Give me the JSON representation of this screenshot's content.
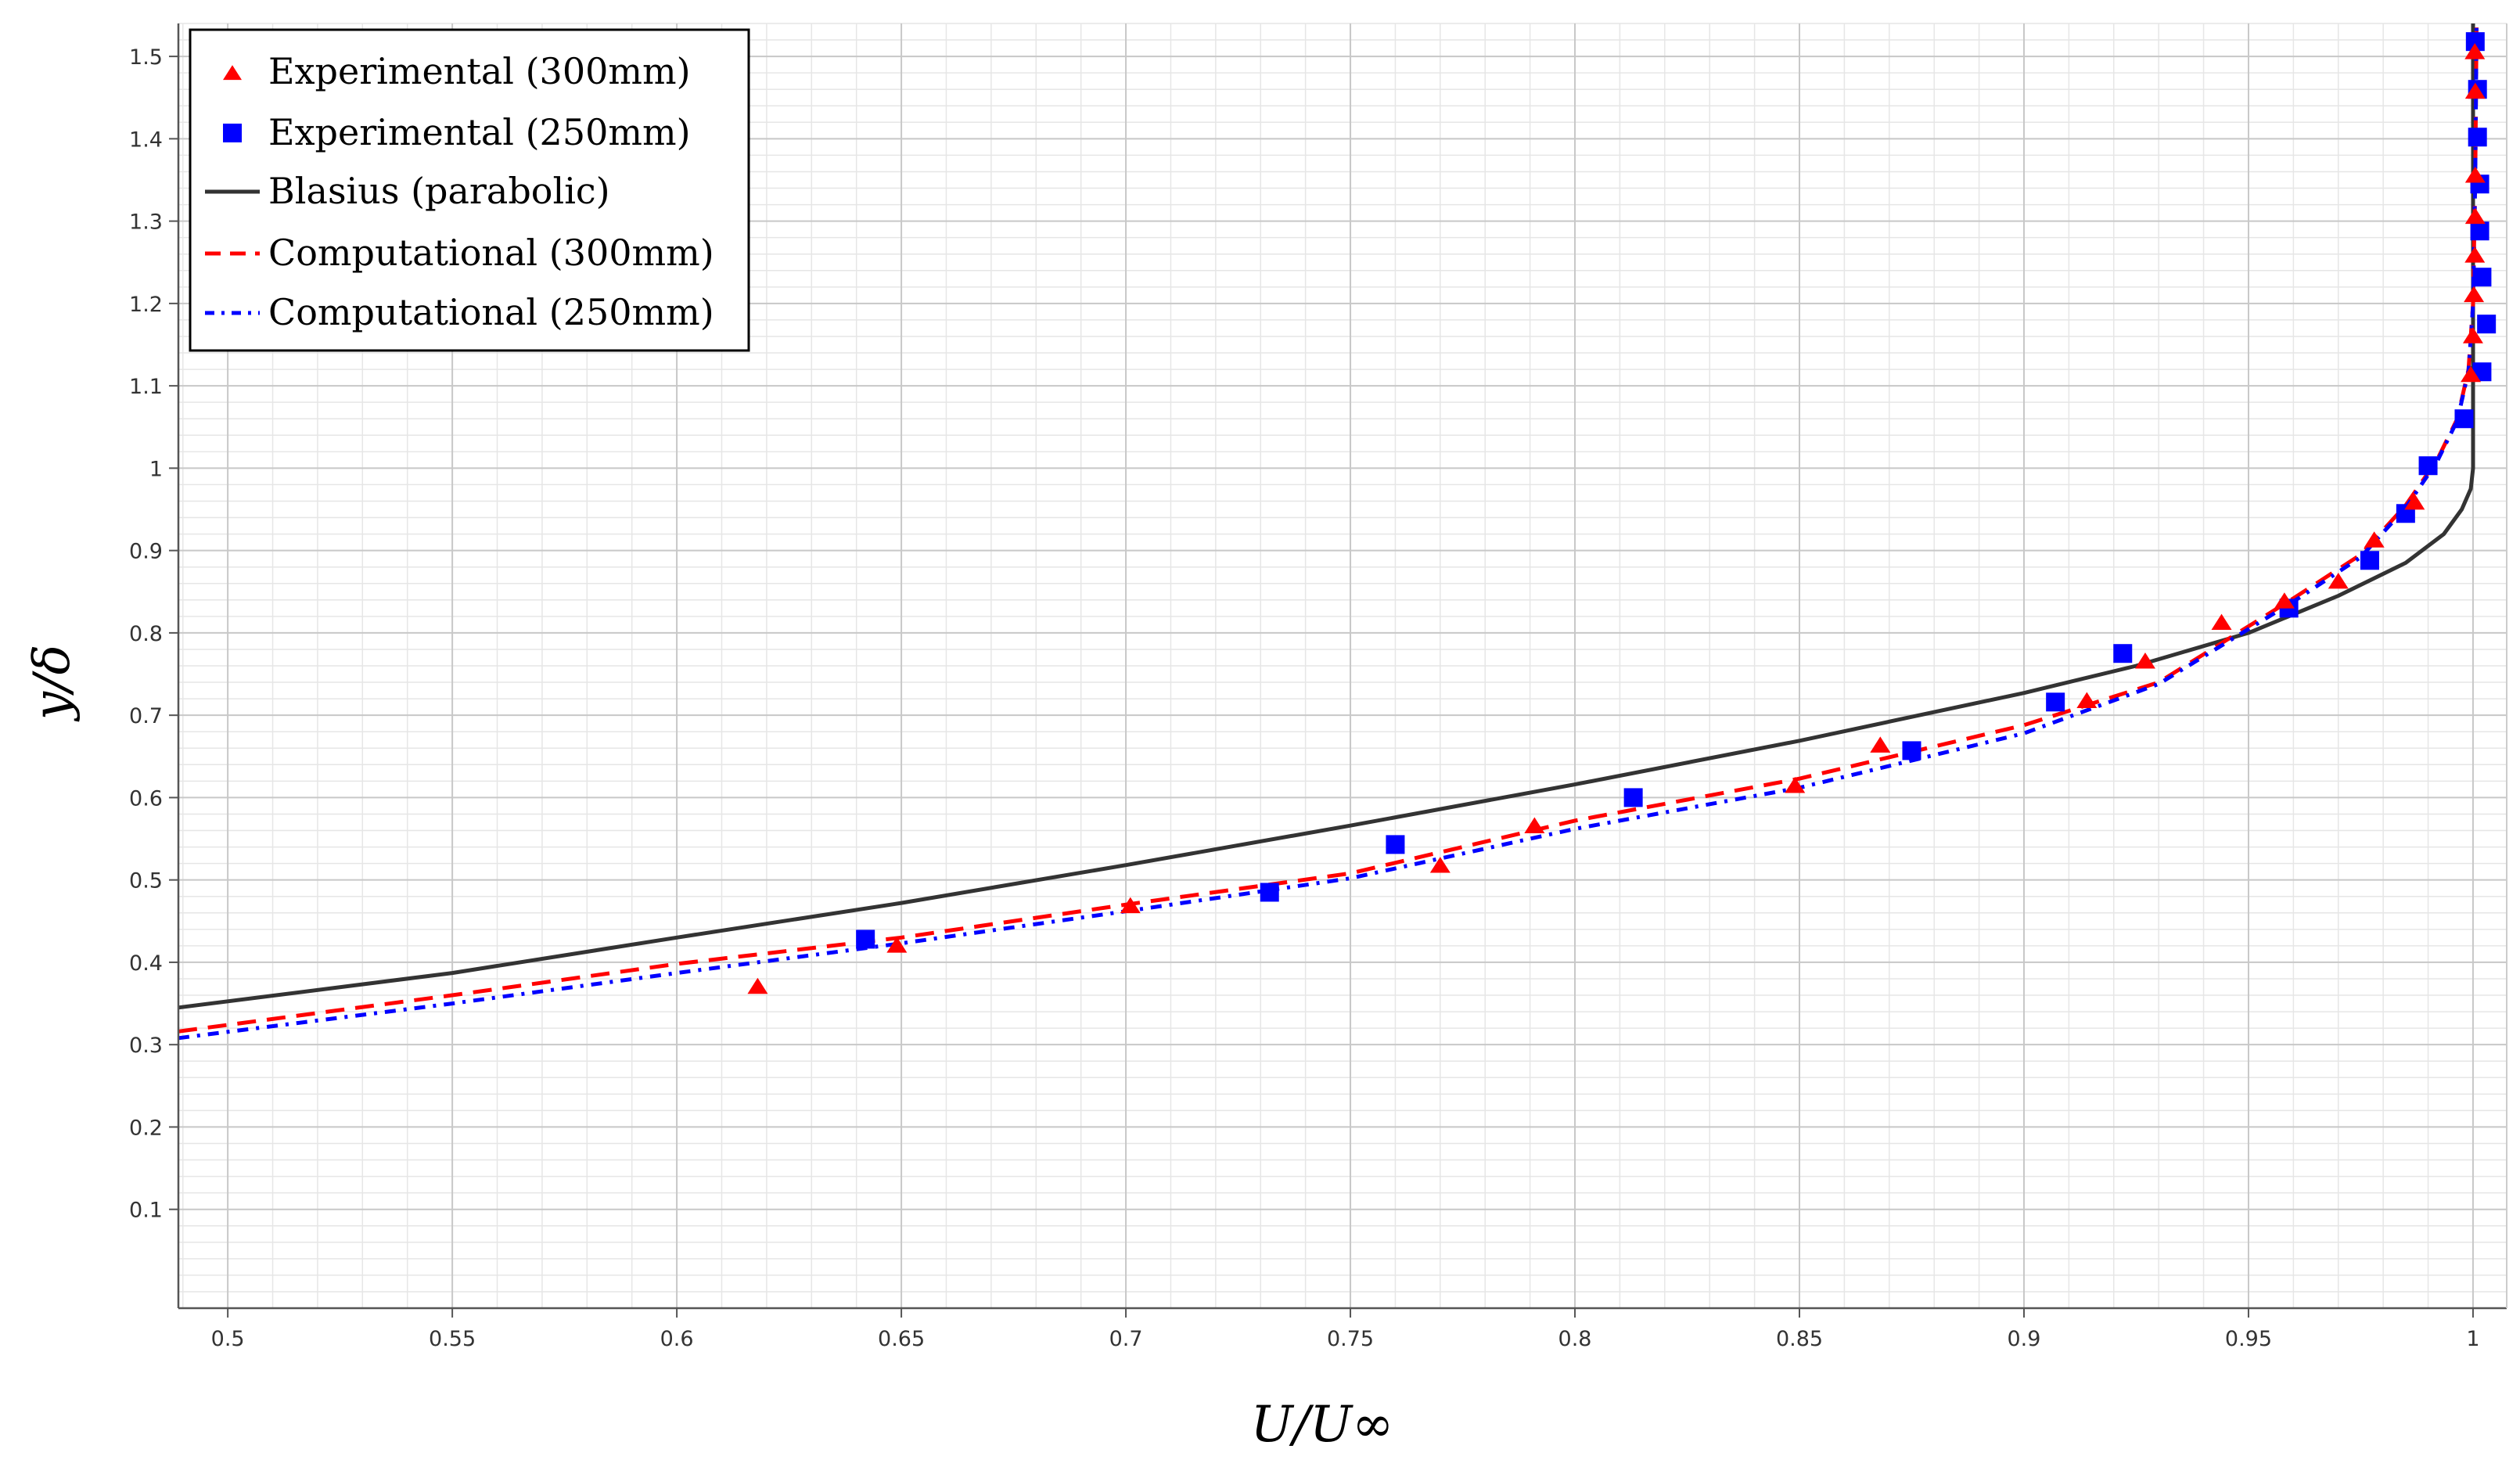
{
  "chart_data": {
    "type": "scatter",
    "title": "",
    "xlabel": "U/U∞",
    "ylabel": "y/δ",
    "xlim": [
      0.489,
      1.0075
    ],
    "ylim": [
      -0.02,
      1.54
    ],
    "x_ticks": [
      "0.5",
      "0.55",
      "0.6",
      "0.65",
      "0.7",
      "0.75",
      "0.8",
      "0.85",
      "0.9",
      "0.95",
      "1"
    ],
    "y_ticks": [
      "0.1",
      "0.2",
      "0.3",
      "0.4",
      "0.5",
      "0.6",
      "0.7",
      "0.8",
      "0.9",
      "1",
      "1.1",
      "1.2",
      "1.3",
      "1.4",
      "1.5"
    ],
    "grid": true,
    "legend_position": "top-left",
    "series": [
      {
        "name": "Experimental (300mm)",
        "style": "triangle-markers",
        "color": "#ff0000",
        "x": [
          0.618,
          0.649,
          0.701,
          0.77,
          0.791,
          0.849,
          0.868,
          0.914,
          0.927,
          0.944,
          0.958,
          0.97,
          0.978,
          0.987,
          0.9995,
          1.0,
          1.0002,
          1.0004,
          1.0005,
          1.0005,
          1.0005,
          1.0004
        ],
        "y": [
          0.37,
          0.42,
          0.468,
          0.517,
          0.565,
          0.614,
          0.663,
          0.717,
          0.765,
          0.812,
          0.838,
          0.862,
          0.912,
          0.958,
          1.113,
          1.16,
          1.21,
          1.258,
          1.305,
          1.355,
          1.457,
          1.505
        ]
      },
      {
        "name": "Experimental (250mm)",
        "style": "square-markers",
        "color": "#0000ff",
        "x": [
          0.642,
          0.732,
          0.76,
          0.813,
          0.875,
          0.907,
          0.922,
          0.959,
          0.977,
          0.985,
          0.99,
          0.998,
          1.002,
          1.003,
          1.002,
          1.0015,
          1.0015,
          1.001,
          1.001,
          1.0005
        ],
        "y": [
          0.428,
          0.485,
          0.543,
          0.6,
          0.657,
          0.716,
          0.775,
          0.83,
          0.888,
          0.945,
          1.003,
          1.06,
          1.117,
          1.175,
          1.232,
          1.288,
          1.345,
          1.402,
          1.46,
          1.518
        ]
      },
      {
        "name": "Blasius (parabolic)",
        "style": "solid",
        "color": "#333333",
        "x": [
          0.489,
          0.55,
          0.6,
          0.65,
          0.7,
          0.75,
          0.8,
          0.85,
          0.9,
          0.925,
          0.95,
          0.97,
          0.985,
          0.9935,
          0.9975,
          0.9995,
          1.0,
          1.0,
          1.0
        ],
        "y": [
          0.345,
          0.387,
          0.43,
          0.472,
          0.518,
          0.566,
          0.616,
          0.669,
          0.727,
          0.76,
          0.8,
          0.845,
          0.885,
          0.92,
          0.95,
          0.975,
          1.0,
          1.3,
          1.54
        ]
      },
      {
        "name": "Computational (300mm)",
        "style": "dashed",
        "color": "#ff0000",
        "x": [
          0.489,
          0.55,
          0.6,
          0.65,
          0.7,
          0.75,
          0.8,
          0.85,
          0.9,
          0.93,
          0.96,
          0.975,
          0.985,
          0.992,
          0.9965,
          0.999,
          1.0,
          1.0005,
          1.0008
        ],
        "y": [
          0.316,
          0.36,
          0.398,
          0.43,
          0.47,
          0.508,
          0.572,
          0.623,
          0.688,
          0.74,
          0.842,
          0.895,
          0.955,
          1.01,
          1.06,
          1.12,
          1.2,
          1.35,
          1.54
        ]
      },
      {
        "name": "Computational (250mm)",
        "style": "dash-dot",
        "color": "#0000ff",
        "x": [
          0.489,
          0.55,
          0.6,
          0.65,
          0.7,
          0.75,
          0.8,
          0.85,
          0.9,
          0.93,
          0.96,
          0.975,
          0.985,
          0.992,
          0.9965,
          0.999,
          1.0,
          1.0005,
          1.0008
        ],
        "y": [
          0.308,
          0.35,
          0.387,
          0.423,
          0.462,
          0.502,
          0.562,
          0.612,
          0.678,
          0.738,
          0.838,
          0.892,
          0.952,
          1.008,
          1.058,
          1.118,
          1.198,
          1.35,
          1.54
        ]
      }
    ]
  }
}
